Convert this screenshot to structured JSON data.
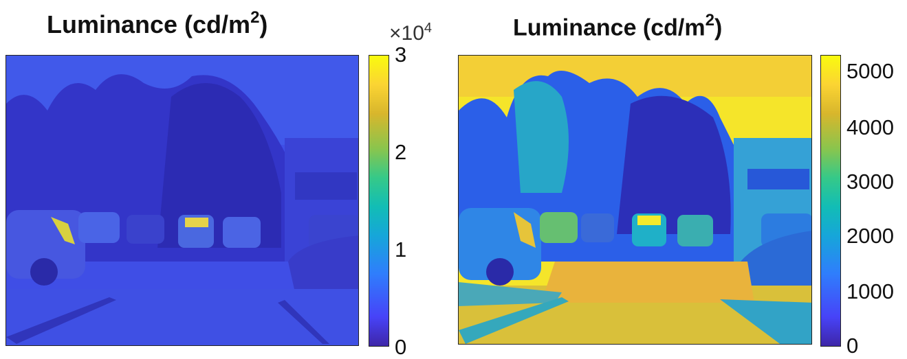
{
  "left_panel": {
    "title": "Luminance (cd/m",
    "title_sup": "2",
    "title_end": ")",
    "colorbar_multiplier_base": "×10",
    "colorbar_multiplier_exp": "4",
    "colorbar_ticks": [
      "3",
      "2",
      "1",
      "0"
    ]
  },
  "right_panel": {
    "title": "Luminance (cd/m",
    "title_sup": "2",
    "title_end": ")",
    "colorbar_ticks": [
      "5000",
      "4000",
      "3000",
      "2000",
      "1000",
      "0"
    ]
  },
  "colors": {
    "parula_low": "#3e26a8",
    "parula_mid": "#12bdb5",
    "parula_high": "#f9fb0e"
  }
}
